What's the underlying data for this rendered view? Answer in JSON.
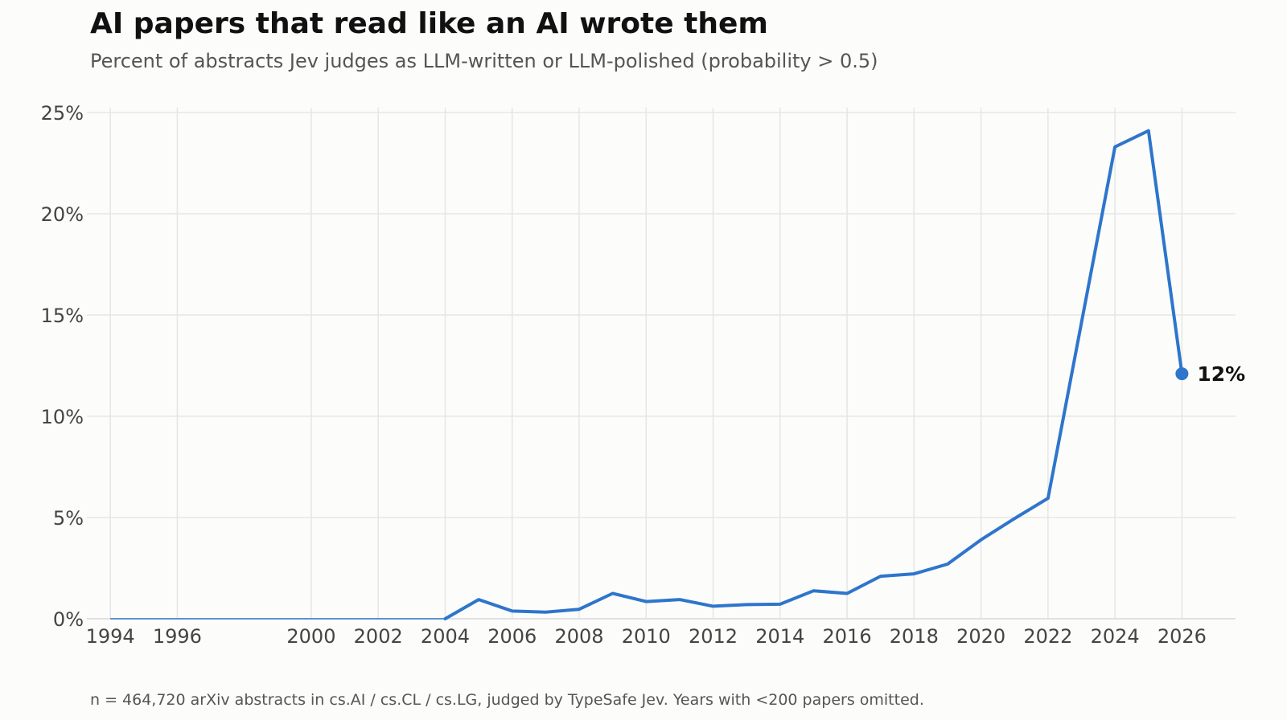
{
  "title": "AI papers that read like an AI wrote them",
  "subtitle": "Percent of abstracts Jev judges as LLM-written or LLM-polished (probability > 0.5)",
  "footnote": "n = 464,720 arXiv abstracts in cs.AI / cs.CL / cs.LG, judged by TypeSafe Jev. Years with <200 papers omitted.",
  "colors": {
    "line": "#2e75cc",
    "grid": "#e6e6e6",
    "background": "#fcfcfb"
  },
  "chart_data": {
    "type": "line",
    "title": "AI papers that read like an AI wrote them",
    "subtitle": "Percent of abstracts Jev judges as LLM-written or LLM-polished (probability > 0.5)",
    "xlabel": "",
    "ylabel": "",
    "xlim": [
      1993.3,
      2027.6
    ],
    "ylim": [
      0,
      25
    ],
    "x_ticks": [
      1994,
      1996,
      2000,
      2002,
      2004,
      2006,
      2008,
      2010,
      2012,
      2014,
      2016,
      2018,
      2020,
      2022,
      2024,
      2026
    ],
    "y_ticks": [
      0,
      5,
      10,
      15,
      20,
      25
    ],
    "y_tick_labels": [
      "0%",
      "5%",
      "10%",
      "15%",
      "20%",
      "25%"
    ],
    "grid": true,
    "x": [
      1994,
      1996,
      2000,
      2002,
      2004,
      2005,
      2006,
      2007,
      2008,
      2009,
      2010,
      2011,
      2012,
      2013,
      2014,
      2015,
      2016,
      2017,
      2018,
      2019,
      2020,
      2021,
      2022,
      2024,
      2025,
      2026
    ],
    "y": [
      0,
      0,
      0,
      0,
      0,
      0.95,
      0.38,
      0.33,
      0.47,
      1.25,
      0.85,
      0.95,
      0.62,
      0.7,
      0.72,
      1.38,
      1.25,
      2.1,
      2.22,
      2.7,
      3.9,
      4.95,
      5.95,
      23.3,
      24.1,
      12.1
    ],
    "end_label": "12%"
  }
}
